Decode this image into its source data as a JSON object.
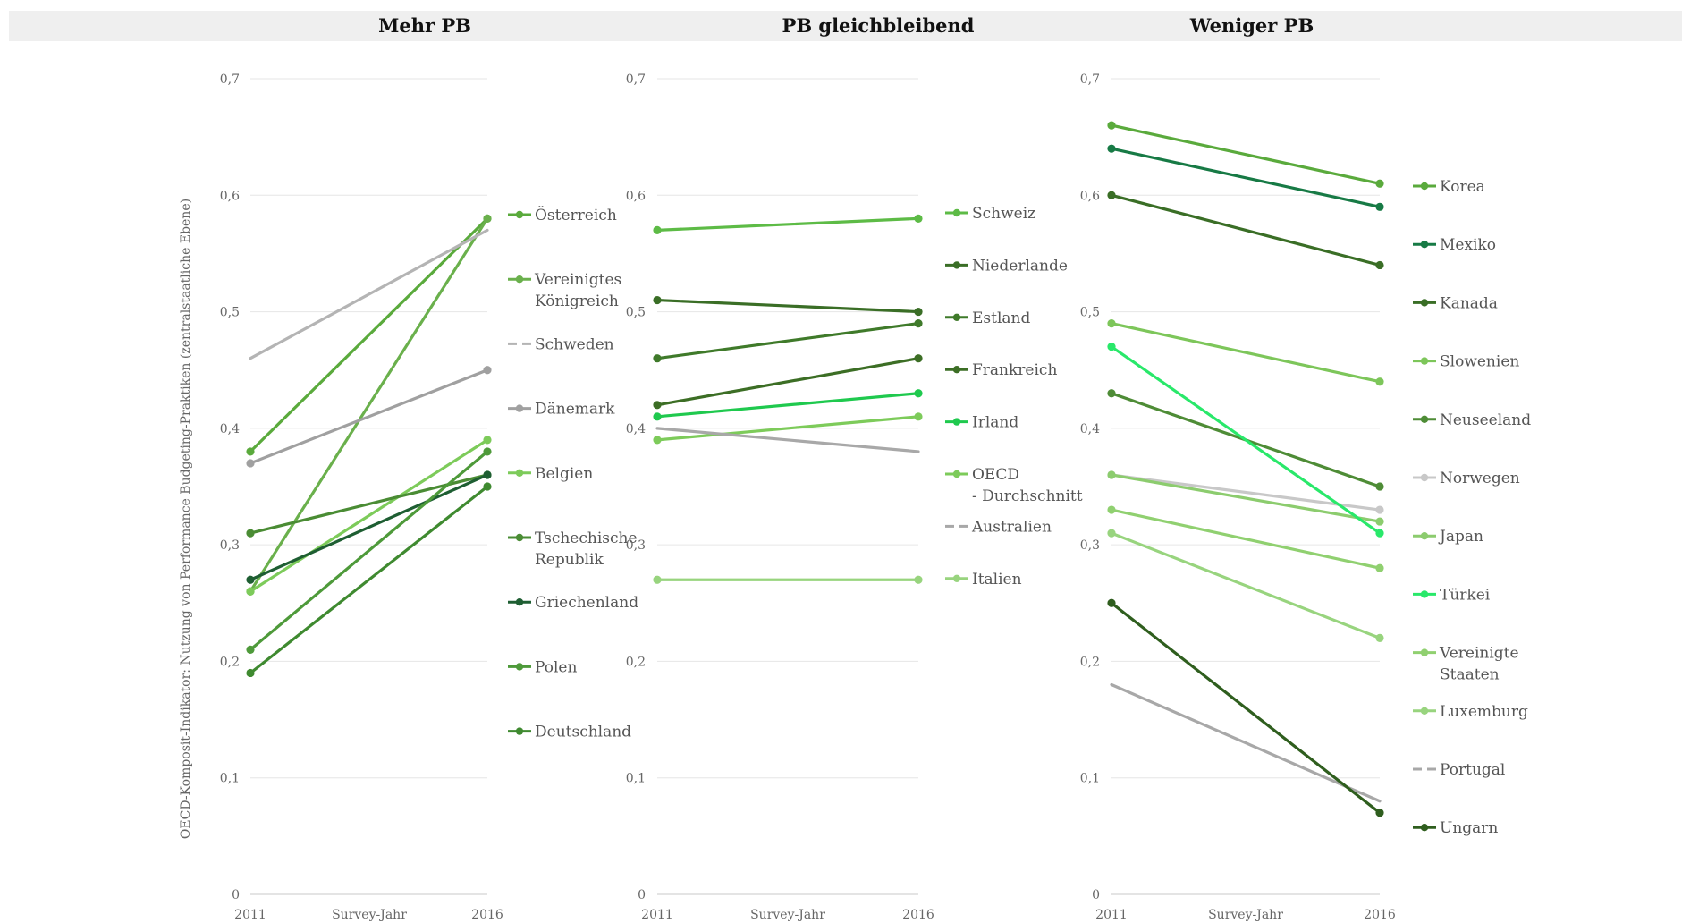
{
  "chart_data": {
    "type": "line",
    "ylabel": "OECD-Komposit-Indikator: Nutzung von Performance Budgeting-Praktiken (zentralstaatliche Ebene)",
    "xlabel": "Survey-Jahr",
    "x": [
      "2011",
      "2016"
    ],
    "ylim": [
      0,
      0.7
    ],
    "yticks": [
      "0",
      "0,1",
      "0,2",
      "0,3",
      "0,4",
      "0,5",
      "0,6",
      "0,7"
    ],
    "grid": true,
    "legend_position": "right of each panel",
    "panels": [
      {
        "title": "Mehr PB",
        "series": [
          {
            "name": "Österreich",
            "values": [
              0.38,
              0.58
            ],
            "color": "#5aaa3c",
            "dashed": false
          },
          {
            "name": "Vereinigtes Königreich",
            "values": [
              0.26,
              0.58
            ],
            "color": "#6ab04c",
            "dashed": false
          },
          {
            "name": "Schweden",
            "values": [
              0.46,
              0.57
            ],
            "color": "#b4b4b4",
            "dashed": true
          },
          {
            "name": "Dänemark",
            "values": [
              0.37,
              0.45
            ],
            "color": "#a0a0a0",
            "dashed": false
          },
          {
            "name": "Belgien",
            "values": [
              0.26,
              0.39
            ],
            "color": "#7dcb5a",
            "dashed": false
          },
          {
            "name": "Tschechische Republik",
            "values": [
              0.31,
              0.36
            ],
            "color": "#4a8c34",
            "dashed": false
          },
          {
            "name": "Griechenland",
            "values": [
              0.27,
              0.36
            ],
            "color": "#1e5e32",
            "dashed": false
          },
          {
            "name": "Polen",
            "values": [
              0.21,
              0.38
            ],
            "color": "#4e9a3a",
            "dashed": false
          },
          {
            "name": "Deutschland",
            "values": [
              0.19,
              0.35
            ],
            "color": "#3f8a30",
            "dashed": false
          }
        ]
      },
      {
        "title": "PB gleichbleibend",
        "series": [
          {
            "name": "Schweiz",
            "values": [
              0.57,
              0.58
            ],
            "color": "#5dbb46",
            "dashed": false
          },
          {
            "name": "Niederlande",
            "values": [
              0.51,
              0.5
            ],
            "color": "#3a6e26",
            "dashed": false
          },
          {
            "name": "Estland",
            "values": [
              0.46,
              0.49
            ],
            "color": "#3f7a2a",
            "dashed": false
          },
          {
            "name": "Frankreich",
            "values": [
              0.42,
              0.46
            ],
            "color": "#3c6e25",
            "dashed": false
          },
          {
            "name": "Irland",
            "values": [
              0.41,
              0.43
            ],
            "color": "#1fc94e",
            "dashed": false
          },
          {
            "name": "OECD - Durchschnitt",
            "values": [
              0.39,
              0.41
            ],
            "color": "#7dcb5a",
            "dashed": false
          },
          {
            "name": "Australien",
            "values": [
              0.4,
              0.38
            ],
            "color": "#a8a8a8",
            "dashed": true
          },
          {
            "name": "Italien",
            "values": [
              0.27,
              0.27
            ],
            "color": "#98d47e",
            "dashed": false
          }
        ]
      },
      {
        "title": "Weniger PB",
        "series": [
          {
            "name": "Korea",
            "values": [
              0.66,
              0.61
            ],
            "color": "#5aaa3c",
            "dashed": false
          },
          {
            "name": "Mexiko",
            "values": [
              0.64,
              0.59
            ],
            "color": "#177a45",
            "dashed": false
          },
          {
            "name": "Kanada",
            "values": [
              0.6,
              0.54
            ],
            "color": "#3a6e26",
            "dashed": false
          },
          {
            "name": "Slowenien",
            "values": [
              0.49,
              0.44
            ],
            "color": "#7dc65a",
            "dashed": false
          },
          {
            "name": "Neuseeland",
            "values": [
              0.43,
              0.35
            ],
            "color": "#4e8c36",
            "dashed": false
          },
          {
            "name": "Norwegen",
            "values": [
              0.36,
              0.33
            ],
            "color": "#c8c8c8",
            "dashed": false
          },
          {
            "name": "Japan",
            "values": [
              0.36,
              0.32
            ],
            "color": "#8ccc6e",
            "dashed": false
          },
          {
            "name": "Türkei",
            "values": [
              0.47,
              0.31
            ],
            "color": "#29e86a",
            "dashed": false
          },
          {
            "name": "Vereinigte Staaten",
            "values": [
              0.33,
              0.28
            ],
            "color": "#90d070",
            "dashed": false
          },
          {
            "name": "Luxemburg",
            "values": [
              0.31,
              0.22
            ],
            "color": "#98d47e",
            "dashed": false
          },
          {
            "name": "Portugal",
            "values": [
              0.18,
              0.08
            ],
            "color": "#a8a8a8",
            "dashed": true
          },
          {
            "name": "Ungarn",
            "values": [
              0.25,
              0.07
            ],
            "color": "#2f5e1e",
            "dashed": false
          }
        ]
      }
    ]
  }
}
